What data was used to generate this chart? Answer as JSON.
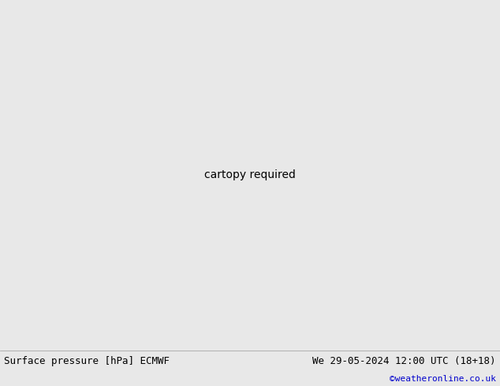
{
  "title_left": "Surface pressure [hPa] ECMWF",
  "title_right": "We 29-05-2024 12:00 UTC (18+18)",
  "copyright": "©weatheronline.co.uk",
  "bg_ocean": "#d8d8d8",
  "bg_land_green": "#b8d8a0",
  "bg_land_gray": "#b0b8b0",
  "footer_bg": "#e8e8e8",
  "footer_text_color": "#000000",
  "copyright_color": "#0000cc",
  "contour_black_color": "#000000",
  "contour_red_color": "#cc0000",
  "contour_blue_color": "#0000cc",
  "label_fontsize": 7,
  "footer_fontsize": 9,
  "figsize": [
    6.34,
    4.9
  ],
  "dpi": 100,
  "map_extent_lon": [
    -25,
    45
  ],
  "map_extent_lat": [
    30,
    72
  ]
}
